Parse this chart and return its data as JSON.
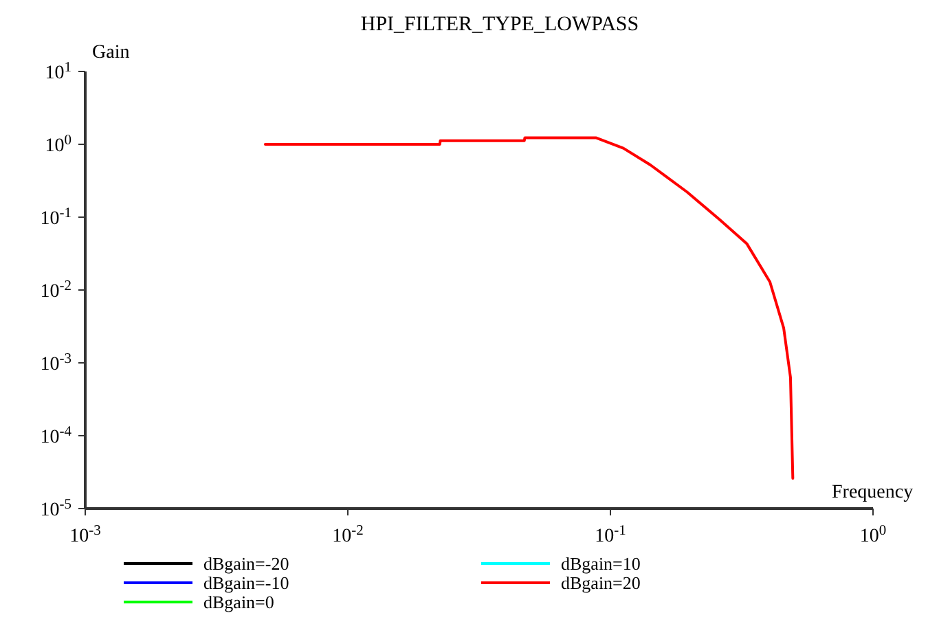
{
  "chart_data": {
    "type": "line",
    "title": "HPI_FILTER_TYPE_LOWPASS",
    "xlabel": "Frequency",
    "ylabel": "Gain",
    "log": "xy",
    "grid": false,
    "legend": "bottom",
    "line_style": "solid",
    "marker": "none",
    "x": [
      0.00485,
      0.0224,
      0.0225,
      0.047,
      0.0472,
      0.088,
      0.112,
      0.142,
      0.196,
      0.26,
      0.331,
      0.405,
      0.457,
      0.485,
      0.495
    ],
    "xlim": [
      0.001,
      1
    ],
    "ylim": [
      1e-05,
      10
    ],
    "xticks": [
      {
        "value": 0.001,
        "label": "10$^{-3}$"
      },
      {
        "value": 0.01,
        "label": "10$^{-2}$"
      },
      {
        "value": 0.1,
        "label": "10$^{-1}$"
      },
      {
        "value": 1,
        "label": "10$^{0}$"
      }
    ],
    "yticks": [
      {
        "value": 1e-05,
        "label": "10$^{-5}$"
      },
      {
        "value": 0.0001,
        "label": "10$^{-4}$"
      },
      {
        "value": 0.001,
        "label": "10$^{-3}$"
      },
      {
        "value": 0.01,
        "label": "10$^{-2}$"
      },
      {
        "value": 0.1,
        "label": "10$^{-1}$"
      },
      {
        "value": 1,
        "label": "10$^{0}$"
      },
      {
        "value": 10,
        "label": "10$^{1}$"
      }
    ],
    "series": [
      {
        "name": "dBgain=-20",
        "color": "#000000",
        "values": [
          null,
          null,
          null,
          null,
          null,
          null,
          null,
          null,
          null,
          null,
          null,
          null,
          null,
          null,
          null
        ]
      },
      {
        "name": "dBgain=-10",
        "color": "#0000ff",
        "values": [
          null,
          null,
          null,
          null,
          null,
          null,
          null,
          null,
          null,
          null,
          null,
          null,
          null,
          null,
          null
        ]
      },
      {
        "name": "dBgain=0",
        "color": "#00ff00",
        "values": [
          null,
          null,
          null,
          null,
          null,
          null,
          null,
          null,
          null,
          null,
          null,
          null,
          null,
          null,
          null
        ]
      },
      {
        "name": "dBgain=10",
        "color": "#00ffff",
        "values": [
          null,
          null,
          null,
          null,
          null,
          null,
          null,
          null,
          null,
          null,
          null,
          null,
          null,
          null,
          null
        ]
      },
      {
        "name": "dBgain=20",
        "color": "#ff0000",
        "values": [
          1.0,
          1.0,
          1.12,
          1.12,
          1.23,
          1.23,
          0.885,
          0.521,
          0.221,
          0.093,
          0.043,
          0.0129,
          0.003,
          0.00063,
          2.6e-05
        ]
      }
    ]
  }
}
